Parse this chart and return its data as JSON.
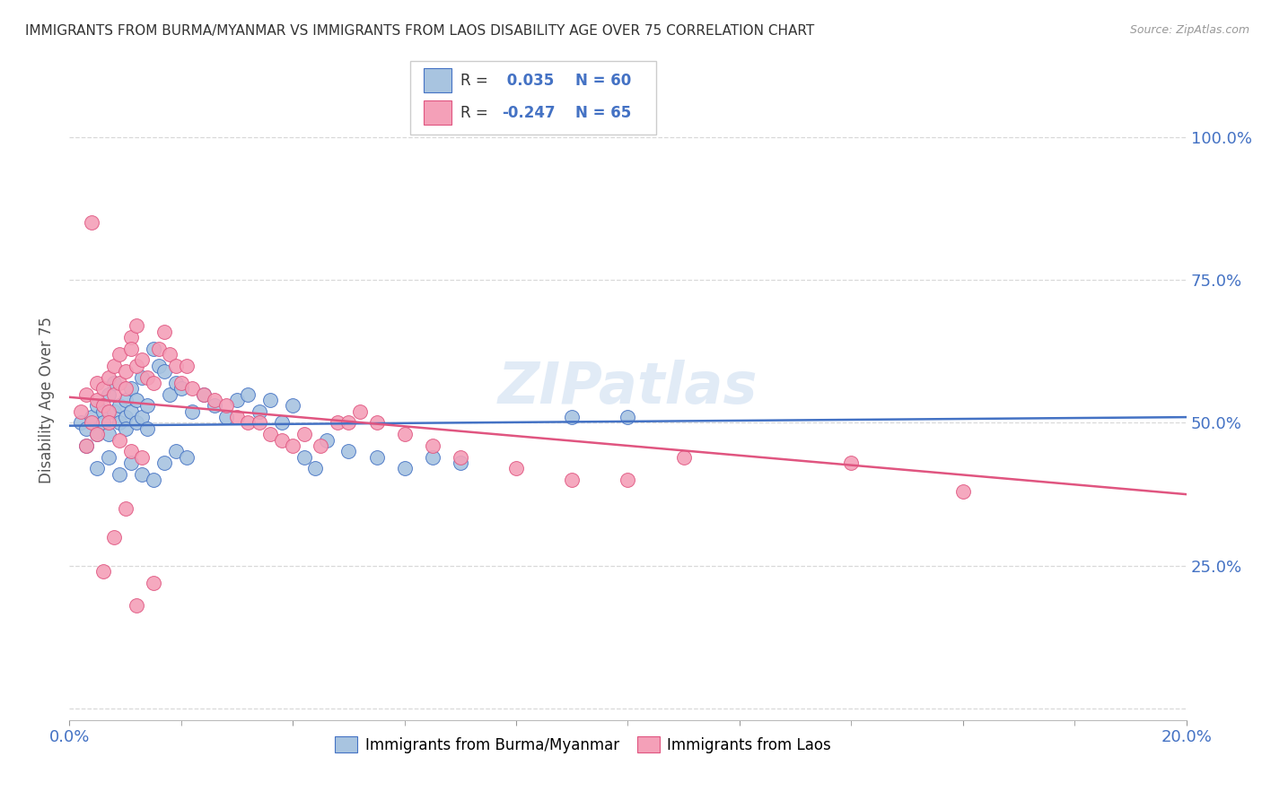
{
  "title": "IMMIGRANTS FROM BURMA/MYANMAR VS IMMIGRANTS FROM LAOS DISABILITY AGE OVER 75 CORRELATION CHART",
  "source": "Source: ZipAtlas.com",
  "ylabel": "Disability Age Over 75",
  "color_burma": "#a8c4e0",
  "color_laos": "#f4a0b8",
  "line_color_burma": "#4472c4",
  "line_color_laos": "#e05580",
  "axis_label_color": "#4472c4",
  "watermark": "ZIPatlas",
  "xlim": [
    0.0,
    0.2
  ],
  "ylim": [
    -0.02,
    1.1
  ],
  "grid_color": "#d0d0d0",
  "bg_color": "#ffffff",
  "burma_x": [
    0.002,
    0.003,
    0.004,
    0.005,
    0.005,
    0.006,
    0.006,
    0.007,
    0.007,
    0.008,
    0.008,
    0.009,
    0.009,
    0.01,
    0.01,
    0.01,
    0.011,
    0.011,
    0.012,
    0.012,
    0.013,
    0.013,
    0.014,
    0.014,
    0.015,
    0.016,
    0.017,
    0.018,
    0.019,
    0.02,
    0.022,
    0.024,
    0.026,
    0.028,
    0.03,
    0.032,
    0.034,
    0.036,
    0.038,
    0.04,
    0.042,
    0.044,
    0.046,
    0.05,
    0.055,
    0.06,
    0.065,
    0.07,
    0.09,
    0.1,
    0.003,
    0.005,
    0.007,
    0.009,
    0.011,
    0.013,
    0.015,
    0.017,
    0.019,
    0.021
  ],
  "burma_y": [
    0.5,
    0.49,
    0.51,
    0.53,
    0.48,
    0.52,
    0.5,
    0.55,
    0.48,
    0.52,
    0.57,
    0.5,
    0.53,
    0.51,
    0.49,
    0.54,
    0.56,
    0.52,
    0.5,
    0.54,
    0.58,
    0.51,
    0.53,
    0.49,
    0.63,
    0.6,
    0.59,
    0.55,
    0.57,
    0.56,
    0.52,
    0.55,
    0.53,
    0.51,
    0.54,
    0.55,
    0.52,
    0.54,
    0.5,
    0.53,
    0.44,
    0.42,
    0.47,
    0.45,
    0.44,
    0.42,
    0.44,
    0.43,
    0.51,
    0.51,
    0.46,
    0.42,
    0.44,
    0.41,
    0.43,
    0.41,
    0.4,
    0.43,
    0.45,
    0.44
  ],
  "laos_x": [
    0.002,
    0.003,
    0.004,
    0.005,
    0.005,
    0.006,
    0.006,
    0.007,
    0.007,
    0.008,
    0.008,
    0.009,
    0.009,
    0.01,
    0.01,
    0.011,
    0.011,
    0.012,
    0.012,
    0.013,
    0.014,
    0.015,
    0.016,
    0.017,
    0.018,
    0.019,
    0.02,
    0.021,
    0.022,
    0.024,
    0.026,
    0.028,
    0.03,
    0.032,
    0.034,
    0.036,
    0.038,
    0.04,
    0.042,
    0.045,
    0.048,
    0.05,
    0.052,
    0.055,
    0.06,
    0.065,
    0.07,
    0.08,
    0.09,
    0.1,
    0.003,
    0.005,
    0.007,
    0.009,
    0.011,
    0.013,
    0.015,
    0.11,
    0.14,
    0.16,
    0.004,
    0.006,
    0.008,
    0.01,
    0.012
  ],
  "laos_y": [
    0.52,
    0.55,
    0.5,
    0.54,
    0.57,
    0.53,
    0.56,
    0.52,
    0.58,
    0.55,
    0.6,
    0.57,
    0.62,
    0.59,
    0.56,
    0.65,
    0.63,
    0.67,
    0.6,
    0.61,
    0.58,
    0.57,
    0.63,
    0.66,
    0.62,
    0.6,
    0.57,
    0.6,
    0.56,
    0.55,
    0.54,
    0.53,
    0.51,
    0.5,
    0.5,
    0.48,
    0.47,
    0.46,
    0.48,
    0.46,
    0.5,
    0.5,
    0.52,
    0.5,
    0.48,
    0.46,
    0.44,
    0.42,
    0.4,
    0.4,
    0.46,
    0.48,
    0.5,
    0.47,
    0.45,
    0.44,
    0.22,
    0.44,
    0.43,
    0.38,
    0.85,
    0.24,
    0.3,
    0.35,
    0.18
  ]
}
